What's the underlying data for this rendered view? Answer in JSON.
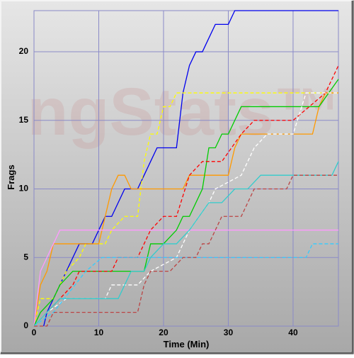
{
  "chart_data": {
    "type": "line",
    "xlabel": "Time (Min)",
    "ylabel": "Frags",
    "watermark": "ngStats™",
    "xlim": [
      0,
      47
    ],
    "ylim": [
      0,
      23
    ],
    "xticks": [
      0,
      10,
      20,
      30,
      40
    ],
    "yticks": [
      0,
      5,
      10,
      15,
      20
    ],
    "grid": true,
    "series": [
      {
        "color": "#0000ee",
        "dashed": false,
        "x": [
          1.5,
          2,
          3,
          4,
          5,
          6,
          7,
          9,
          10,
          11,
          12,
          13,
          14,
          16,
          17,
          18,
          19,
          21,
          22,
          23,
          24,
          25,
          26,
          27,
          28,
          30,
          31,
          47
        ],
        "values": [
          0,
          1,
          2,
          3,
          4,
          5,
          6,
          6,
          7,
          8,
          8,
          9,
          10,
          10,
          11,
          12,
          13,
          13,
          13,
          17,
          19,
          20,
          20,
          21,
          22,
          22,
          23,
          23
        ]
      },
      {
        "color": "#ffff00",
        "dashed": true,
        "x": [
          0,
          1,
          3,
          4,
          5,
          7,
          8,
          11,
          12,
          14,
          16,
          17,
          18,
          19,
          20,
          21,
          22,
          47
        ],
        "values": [
          0,
          2,
          2,
          3,
          4,
          5,
          6,
          6,
          7,
          8,
          8,
          12,
          14,
          14,
          16,
          16,
          17,
          17
        ]
      },
      {
        "color": "#ff9900",
        "dashed": false,
        "x": [
          0,
          1,
          2,
          3,
          10,
          12,
          13,
          14,
          15,
          23,
          24,
          30,
          31,
          32,
          43,
          44,
          45,
          47
        ],
        "values": [
          0,
          3,
          4,
          6,
          6,
          10,
          11,
          11,
          10,
          10,
          11,
          11,
          13,
          14,
          14,
          16,
          17,
          17
        ]
      },
      {
        "color": "#ff99ff",
        "dashed": false,
        "x": [
          0,
          1,
          2,
          4,
          47
        ],
        "values": [
          0,
          4,
          5,
          7,
          7
        ]
      },
      {
        "color": "#00cc00",
        "dashed": false,
        "x": [
          0,
          1,
          3,
          4,
          6,
          17,
          18,
          20,
          22,
          23,
          24,
          26,
          27,
          28,
          29,
          30,
          32,
          44,
          47
        ],
        "values": [
          0,
          1,
          2,
          3,
          4,
          4,
          6,
          6,
          7,
          8,
          8,
          10,
          13,
          13,
          14,
          14,
          16,
          16,
          18
        ]
      },
      {
        "color": "#ff0000",
        "dashed": true,
        "x": [
          0,
          2,
          4,
          6,
          7,
          12,
          13,
          16,
          18,
          20,
          22,
          24,
          26,
          29,
          32,
          34,
          40,
          45,
          47
        ],
        "values": [
          0,
          1,
          2,
          3,
          4,
          4,
          5,
          5,
          7,
          8,
          8,
          11,
          12,
          12,
          14,
          15,
          15,
          17,
          19
        ]
      },
      {
        "color": "#ffffff",
        "dashed": true,
        "x": [
          0,
          2,
          5,
          11,
          12,
          16,
          18,
          22,
          24,
          27,
          28,
          32,
          34,
          36,
          40,
          42,
          47
        ],
        "values": [
          0,
          1,
          2,
          2,
          3,
          3,
          4,
          5,
          7,
          9,
          10,
          11,
          13,
          14,
          14,
          17,
          17
        ]
      },
      {
        "color": "#33cccc",
        "dashed": false,
        "x": [
          0,
          2,
          4,
          13,
          15,
          17,
          18,
          20,
          22,
          24,
          27,
          29,
          31,
          33,
          35,
          46,
          47
        ],
        "values": [
          0,
          1,
          2,
          2,
          4,
          4,
          5,
          6,
          6,
          7,
          9,
          9,
          10,
          10,
          11,
          11,
          12
        ]
      },
      {
        "color": "#33ccff",
        "dashed": true,
        "x": [
          0,
          3,
          8,
          10.5,
          42,
          43,
          47
        ],
        "values": [
          0,
          1,
          4,
          5,
          5,
          6,
          6
        ]
      },
      {
        "color": "#bb4444",
        "dashed": true,
        "x": [
          0,
          2,
          3,
          16,
          17,
          18,
          21,
          23,
          25,
          26,
          27,
          29,
          32,
          34,
          39,
          40,
          47
        ],
        "values": [
          0,
          0,
          1,
          1,
          3,
          4,
          4,
          5,
          5,
          6,
          6,
          8,
          8,
          10,
          10,
          11,
          11
        ]
      }
    ]
  }
}
